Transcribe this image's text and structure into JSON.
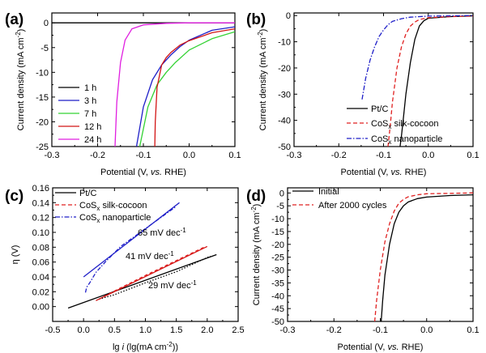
{
  "colors": {
    "black": "#000000",
    "blue": "#1f1fc8",
    "green": "#33d233",
    "red": "#d21414",
    "magenta": "#e01ee0",
    "red_dash": "#e02020"
  },
  "chart_data": [
    {
      "type": "line",
      "panel": "(a)",
      "xlabel": "Potential (V, vs. RHE)",
      "ylabel": "Current density (mA cm⁻²)",
      "xlim": [
        -0.3,
        0.1
      ],
      "ylim": [
        -25,
        2
      ],
      "xticks": [
        "-0.3",
        "-0.2",
        "-0.1",
        "0.0",
        "0.1"
      ],
      "yticks": [
        "0",
        "-5",
        "-10",
        "-15",
        "-20",
        "-25"
      ],
      "legend_position": "bottom-left",
      "series": [
        {
          "name": "1 h",
          "color": "#000000",
          "dash": "",
          "x": [
            -0.3,
            -0.1,
            0.0,
            0.1
          ],
          "y": [
            0,
            0,
            0,
            0
          ]
        },
        {
          "name": "3 h",
          "color": "#1f1fc8",
          "dash": "",
          "x": [
            -0.115,
            -0.1,
            -0.08,
            -0.06,
            -0.04,
            -0.02,
            0.0,
            0.05,
            0.1
          ],
          "y": [
            -25,
            -17,
            -11.5,
            -8.5,
            -6.5,
            -4.8,
            -3.5,
            -1.5,
            -0.8
          ]
        },
        {
          "name": "7 h",
          "color": "#33d233",
          "dash": "",
          "x": [
            -0.108,
            -0.09,
            -0.07,
            -0.05,
            -0.03,
            0.0,
            0.05,
            0.1
          ],
          "y": [
            -25,
            -17,
            -12.5,
            -10,
            -8,
            -5.5,
            -3.2,
            -1.8
          ]
        },
        {
          "name": "12 h",
          "color": "#d21414",
          "dash": "",
          "x": [
            -0.075,
            -0.074,
            -0.07,
            -0.06,
            -0.05,
            -0.04,
            -0.02,
            0.0,
            0.05,
            0.1
          ],
          "y": [
            -25,
            -20,
            -13,
            -8.5,
            -7,
            -6,
            -4.5,
            -3.6,
            -2,
            -1.2
          ]
        },
        {
          "name": "24 h",
          "color": "#e01ee0",
          "dash": "",
          "x": [
            -0.162,
            -0.158,
            -0.15,
            -0.14,
            -0.125,
            -0.1,
            -0.05,
            0.0,
            0.1
          ],
          "y": [
            -25,
            -16,
            -8,
            -3.5,
            -1.2,
            -0.4,
            -0.1,
            0,
            0
          ]
        }
      ]
    },
    {
      "type": "line",
      "panel": "(b)",
      "xlabel": "Potential (V, vs. RHE)",
      "ylabel": "Current density (mA cm⁻²)",
      "xlim": [
        -0.3,
        0.1
      ],
      "ylim": [
        -50,
        1
      ],
      "xticks": [
        "-0.3",
        "-0.2",
        "-0.1",
        "0.0",
        "0.1"
      ],
      "yticks": [
        "0",
        "-10",
        "-20",
        "-30",
        "-40",
        "-50"
      ],
      "legend_position": "bottom-right",
      "legend_labels": [
        "Pt/C",
        "CoS",
        "silk-cocoon",
        "nanoparticle"
      ],
      "series": [
        {
          "name": "Pt/C",
          "color": "#000000",
          "dash": "",
          "x": [
            -0.063,
            -0.06,
            -0.055,
            -0.05,
            -0.04,
            -0.03,
            -0.02,
            -0.01,
            0.0,
            0.05,
            0.1
          ],
          "y": [
            -50,
            -46,
            -38,
            -30,
            -18,
            -9,
            -4,
            -2,
            -1,
            -0.4,
            -0.1
          ]
        },
        {
          "name": "CoSx silk-cocoon",
          "color": "#e02020",
          "dash": "5,3",
          "x": [
            -0.09,
            -0.085,
            -0.08,
            -0.07,
            -0.06,
            -0.05,
            -0.04,
            -0.03,
            -0.02,
            0.0,
            0.05,
            0.1
          ],
          "y": [
            -50,
            -42,
            -33,
            -20,
            -12,
            -7,
            -4,
            -2.5,
            -1.5,
            -0.8,
            -0.4,
            -0.2
          ]
        },
        {
          "name": "CoSx nanoparticle",
          "color": "#1f1fc8",
          "dash": "6,2,1.5,2",
          "x": [
            -0.148,
            -0.14,
            -0.13,
            -0.12,
            -0.11,
            -0.1,
            -0.09,
            -0.08,
            -0.06,
            -0.04,
            0.0,
            0.1
          ],
          "y": [
            -32,
            -24,
            -17,
            -12,
            -8,
            -5.5,
            -3.5,
            -2.2,
            -1.2,
            -0.6,
            -0.2,
            0
          ]
        }
      ]
    },
    {
      "type": "line",
      "panel": "(c)",
      "xlabel": "lg i (lg(mA cm⁻²))",
      "ylabel": "η (V)",
      "xlim": [
        -0.5,
        2.5
      ],
      "ylim": [
        -0.02,
        0.16
      ],
      "xticks": [
        "-0.5",
        "0.0",
        "0.5",
        "1.0",
        "1.5",
        "2.0",
        "2.5"
      ],
      "yticks": [
        "0.00",
        "0.02",
        "0.04",
        "0.06",
        "0.08",
        "0.10",
        "0.12",
        "0.14",
        "0.16"
      ],
      "legend_position": "top-left",
      "legend_labels": [
        "Pt/C",
        "CoS",
        "silk-cocoon",
        "nanoparticle"
      ],
      "annotations": [
        "65 mV dec⁻¹",
        "41 mV dec⁻¹",
        "29 mV dec⁻¹"
      ],
      "series": [
        {
          "name": "Pt/C",
          "color": "#000000",
          "dash": "",
          "x": [
            -0.25,
            2.15
          ],
          "y": [
            -0.002,
            0.07
          ]
        },
        {
          "name": "CoSx silk-cocoon",
          "color": "#d21414",
          "dash": "",
          "x": [
            0.2,
            2.0
          ],
          "y": [
            0.008,
            0.081
          ]
        },
        {
          "name": "CoSx nanoparticle",
          "color": "#1f1fc8",
          "dash": "",
          "x": [
            0.0,
            1.55
          ],
          "y": [
            0.04,
            0.14
          ]
        },
        {
          "name": "Pt/C data",
          "color": "#000000",
          "dash": "1.5,2",
          "x": [
            0.25,
            0.5,
            1.0,
            1.5,
            2.05
          ],
          "y": [
            0.01,
            0.016,
            0.032,
            0.047,
            0.068
          ]
        },
        {
          "name": "CoSx silk-cocoon data",
          "color": "#e02020",
          "dash": "4,3",
          "x": [
            0.25,
            0.5,
            1.0,
            1.5,
            1.95
          ],
          "y": [
            0.01,
            0.021,
            0.042,
            0.062,
            0.08
          ]
        },
        {
          "name": "CoSx nanoparticle data",
          "color": "#1f1fc8",
          "dash": "5,2,1.5,2",
          "x": [
            0.03,
            0.05,
            0.1,
            0.2,
            0.35,
            0.6,
            1.0,
            1.5
          ],
          "y": [
            0.019,
            0.026,
            0.032,
            0.046,
            0.06,
            0.081,
            0.105,
            0.135
          ]
        }
      ]
    },
    {
      "type": "line",
      "panel": "(d)",
      "xlabel": "Potential (V, vs. RHE)",
      "ylabel": "Current density (mA cm⁻²)",
      "xlim": [
        -0.3,
        0.1
      ],
      "ylim": [
        -50,
        2
      ],
      "xticks": [
        "-0.3",
        "-0.2",
        "-0.1",
        "0.0",
        "0.1"
      ],
      "yticks": [
        "0",
        "-5",
        "-10",
        "-15",
        "-20",
        "-25",
        "-30",
        "-35",
        "-40",
        "-45",
        "-50"
      ],
      "legend_position": "top-left",
      "series": [
        {
          "name": "Initial",
          "color": "#000000",
          "dash": "",
          "x": [
            -0.098,
            -0.095,
            -0.09,
            -0.08,
            -0.07,
            -0.06,
            -0.05,
            -0.04,
            -0.02,
            0.0,
            0.05,
            0.1
          ],
          "y": [
            -50,
            -42,
            -32,
            -20,
            -12,
            -7.5,
            -5,
            -3.5,
            -2.2,
            -1.6,
            -1,
            -0.7
          ]
        },
        {
          "name": "After 2000 cycles",
          "color": "#e02020",
          "dash": "5,3",
          "x": [
            -0.112,
            -0.108,
            -0.1,
            -0.09,
            -0.08,
            -0.07,
            -0.06,
            -0.05,
            -0.04,
            -0.02,
            0.0,
            0.1
          ],
          "y": [
            -50,
            -42,
            -30,
            -19,
            -12,
            -7,
            -4,
            -2.5,
            -1.5,
            -0.7,
            -0.3,
            0
          ]
        }
      ]
    }
  ],
  "panel_labels": [
    "(a)",
    "(b)",
    "(c)",
    "(d)"
  ],
  "sub_x": "x",
  "legend_sub": "x",
  "axis_text": {
    "potential_pre": "Potential (V, ",
    "potential_vs": "vs.",
    "potential_post": " RHE)",
    "cd_text": "Current density (mA cm",
    "cd_sup": "-2",
    "cd_close": ")",
    "eta": "η (V)",
    "lgi_pre": "lg ",
    "lgi_i": "i",
    "lgi_post": " (lg(mA cm",
    "lgi_sup": "-2",
    "lgi_close": "))",
    "dec_unit": " mV dec",
    "dec_sup": "-1",
    "slopes": [
      "65",
      "41",
      "29"
    ]
  }
}
